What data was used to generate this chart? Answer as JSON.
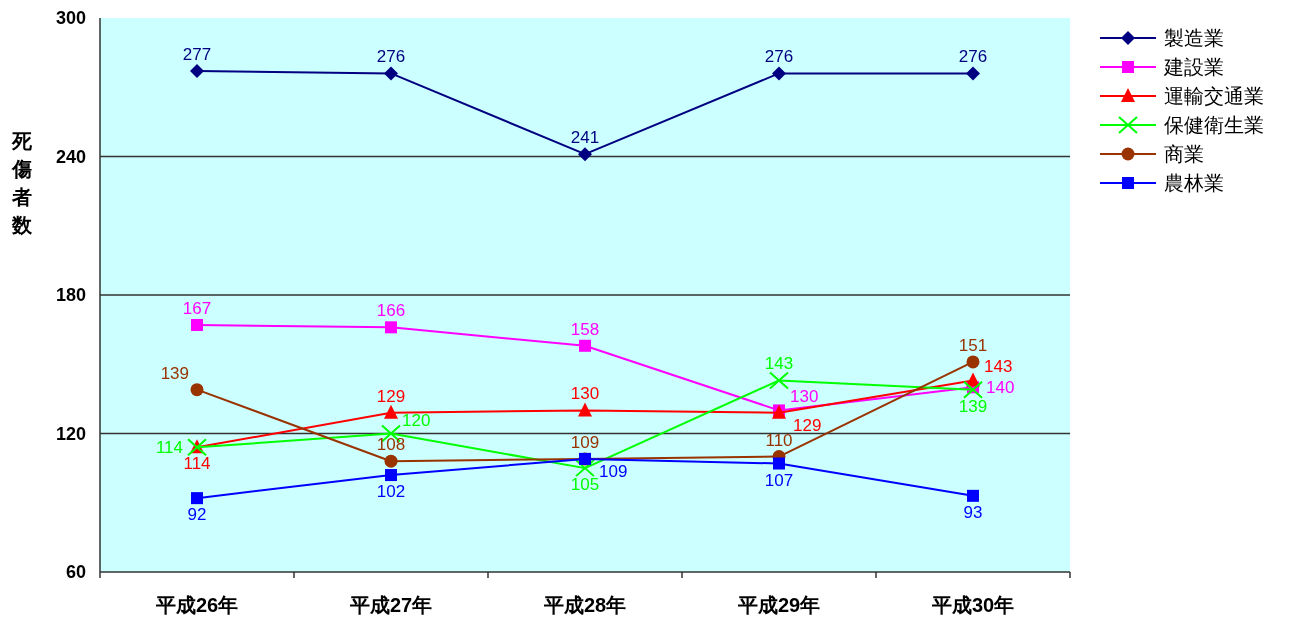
{
  "chart_data": {
    "type": "line",
    "ylabel": "死傷者数",
    "categories": [
      "平成26年",
      "平成27年",
      "平成28年",
      "平成29年",
      "平成30年"
    ],
    "series": [
      {
        "name": "製造業",
        "color": "#000080",
        "marker": "diamond",
        "values": [
          277,
          276,
          241,
          276,
          276
        ]
      },
      {
        "name": "建設業",
        "color": "#ff00ff",
        "marker": "square",
        "values": [
          167,
          166,
          158,
          130,
          140
        ]
      },
      {
        "name": "運輸交通業",
        "color": "#ff0000",
        "marker": "triangle",
        "values": [
          114,
          129,
          130,
          129,
          143
        ]
      },
      {
        "name": "保健衛生業",
        "color": "#00ff00",
        "marker": "cross",
        "values": [
          114,
          120,
          105,
          143,
          139
        ]
      },
      {
        "name": "商業",
        "color": "#993300",
        "marker": "circle",
        "values": [
          139,
          108,
          109,
          110,
          151
        ]
      },
      {
        "name": "農林業",
        "color": "#0000ff",
        "marker": "square",
        "values": [
          92,
          102,
          109,
          107,
          93
        ]
      }
    ],
    "ylim": [
      60,
      300
    ],
    "yticks": [
      60,
      120,
      180,
      240,
      300
    ],
    "grid": "y",
    "legend": "top right",
    "data_labels": true
  }
}
